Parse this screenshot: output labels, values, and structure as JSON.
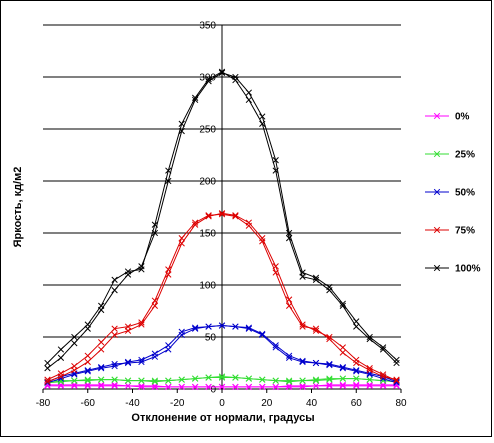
{
  "chart_data": {
    "type": "line",
    "title": "",
    "xlabel": "Отклонение от нормали, градусы",
    "ylabel": "Яркость, кд/м2",
    "xlim": [
      -80,
      80
    ],
    "ylim": [
      0,
      350
    ],
    "xticks": [
      -80,
      -60,
      -40,
      -20,
      0,
      20,
      40,
      60,
      80
    ],
    "yticks": [
      0,
      50,
      100,
      150,
      200,
      250,
      300,
      350
    ],
    "grid": "horizontal",
    "legend": "right",
    "series": [
      {
        "name": "0%",
        "color": "#ff00ff",
        "branches": [
          {
            "x": [
              -78,
              -72,
              -66,
              -60,
              -54,
              -48,
              -42,
              -36,
              -30,
              -24,
              -18,
              -12,
              -6,
              0,
              6,
              12,
              18,
              24,
              30,
              36,
              42,
              48,
              54,
              60,
              66,
              72,
              78
            ],
            "y": [
              3,
              3,
              3,
              3,
              3,
              3,
              3,
              2,
              2,
              2,
              2,
              2,
              2,
              2,
              2,
              2,
              2,
              2,
              2,
              2,
              3,
              3,
              3,
              3,
              3,
              3,
              3
            ]
          },
          {
            "x": [
              -78,
              -72,
              -66,
              -60,
              -54,
              -48,
              -42,
              -36,
              -30,
              -24,
              -18,
              -12,
              -6,
              0,
              6,
              12,
              18,
              24,
              30,
              36,
              42,
              48,
              54,
              60,
              66,
              72,
              78
            ],
            "y": [
              4,
              4,
              4,
              4,
              4,
              4,
              3,
              3,
              3,
              2,
              2,
              2,
              2,
              2,
              2,
              2,
              2,
              2,
              3,
              3,
              3,
              4,
              4,
              4,
              4,
              4,
              4
            ]
          }
        ]
      },
      {
        "name": "25%",
        "color": "#33dd33",
        "branches": [
          {
            "x": [
              -78,
              -72,
              -66,
              -60,
              -54,
              -48,
              -42,
              -36,
              -30,
              -24,
              -18,
              -12,
              -6,
              0,
              6,
              12,
              18,
              24,
              30,
              36,
              42,
              48,
              54,
              60,
              66,
              72,
              78
            ],
            "y": [
              7,
              8,
              8,
              9,
              9,
              9,
              8,
              8,
              7,
              8,
              9,
              10,
              11,
              11,
              11,
              10,
              9,
              8,
              7,
              8,
              8,
              9,
              10,
              10,
              9,
              8,
              7
            ]
          },
          {
            "x": [
              -78,
              -72,
              -66,
              -60,
              -54,
              -48,
              -42,
              -36,
              -30,
              -24,
              -18,
              -12,
              -6,
              0,
              6,
              12,
              18,
              24,
              30,
              36,
              42,
              48,
              54,
              60,
              66,
              72,
              78
            ],
            "y": [
              6,
              7,
              8,
              8,
              9,
              9,
              8,
              8,
              8,
              8,
              9,
              10,
              11,
              12,
              11,
              10,
              9,
              8,
              8,
              8,
              9,
              10,
              10,
              10,
              9,
              8,
              7
            ]
          }
        ]
      },
      {
        "name": "50%",
        "color": "#0000cc",
        "branches": [
          {
            "x": [
              -78,
              -72,
              -66,
              -60,
              -54,
              -48,
              -42,
              -36,
              -30,
              -24,
              -18,
              -12,
              -6,
              0,
              6,
              12,
              18,
              24,
              30,
              36,
              42,
              48,
              54,
              60,
              66,
              72,
              78
            ],
            "y": [
              7,
              12,
              15,
              18,
              21,
              24,
              25,
              26,
              31,
              38,
              52,
              58,
              60,
              61,
              60,
              58,
              52,
              40,
              30,
              26,
              25,
              24,
              21,
              18,
              15,
              12,
              7
            ]
          },
          {
            "x": [
              -78,
              -72,
              -66,
              -60,
              -54,
              -48,
              -42,
              -36,
              -30,
              -24,
              -18,
              -12,
              -6,
              0,
              6,
              12,
              18,
              24,
              30,
              36,
              42,
              48,
              54,
              60,
              66,
              72,
              78
            ],
            "y": [
              6,
              10,
              14,
              17,
              20,
              22,
              26,
              28,
              34,
              42,
              55,
              59,
              60,
              61,
              60,
              59,
              53,
              42,
              32,
              27,
              25,
              23,
              20,
              17,
              14,
              10,
              6
            ]
          }
        ]
      },
      {
        "name": "75%",
        "color": "#dd0000",
        "branches": [
          {
            "x": [
              -78,
              -72,
              -66,
              -60,
              -54,
              -48,
              -42,
              -36,
              -30,
              -24,
              -18,
              -12,
              -6,
              0,
              6,
              12,
              18,
              24,
              30,
              36,
              42,
              48,
              54,
              60,
              66,
              72,
              78
            ],
            "y": [
              9,
              15,
              22,
              32,
              45,
              58,
              60,
              64,
              85,
              115,
              145,
              160,
              167,
              168,
              166,
              157,
              142,
              112,
              80,
              60,
              58,
              48,
              35,
              25,
              18,
              12,
              9
            ]
          },
          {
            "x": [
              -78,
              -72,
              -66,
              -60,
              -54,
              -48,
              -42,
              -36,
              -30,
              -24,
              -18,
              -12,
              -6,
              0,
              6,
              12,
              18,
              24,
              30,
              36,
              42,
              48,
              54,
              60,
              66,
              72,
              78
            ],
            "y": [
              7,
              12,
              18,
              26,
              38,
              52,
              56,
              62,
              80,
              110,
              140,
              158,
              166,
              169,
              167,
              160,
              145,
              118,
              86,
              62,
              56,
              50,
              40,
              28,
              20,
              14,
              8
            ]
          }
        ]
      },
      {
        "name": "100%",
        "color": "#000000",
        "branches": [
          {
            "x": [
              -78,
              -72,
              -66,
              -60,
              -54,
              -48,
              -42,
              -36,
              -30,
              -24,
              -18,
              -12,
              -6,
              0,
              6,
              12,
              18,
              24,
              30,
              36,
              42,
              48,
              54,
              60,
              66,
              72,
              78
            ],
            "y": [
              25,
              38,
              50,
              62,
              80,
              105,
              113,
              115,
              158,
              210,
              255,
              280,
              298,
              305,
              297,
              278,
              255,
              210,
              145,
              108,
              105,
              95,
              80,
              60,
              48,
              38,
              25
            ]
          },
          {
            "x": [
              -78,
              -72,
              -66,
              -60,
              -54,
              -48,
              -42,
              -36,
              -30,
              -24,
              -18,
              -12,
              -6,
              0,
              6,
              12,
              18,
              24,
              30,
              36,
              42,
              48,
              54,
              60,
              66,
              72,
              78
            ],
            "y": [
              20,
              30,
              44,
              58,
              76,
              95,
              110,
              118,
              150,
              200,
              248,
              278,
              296,
              304,
              300,
              285,
              262,
              220,
              150,
              112,
              107,
              98,
              82,
              65,
              50,
              40,
              28
            ]
          }
        ]
      }
    ]
  }
}
